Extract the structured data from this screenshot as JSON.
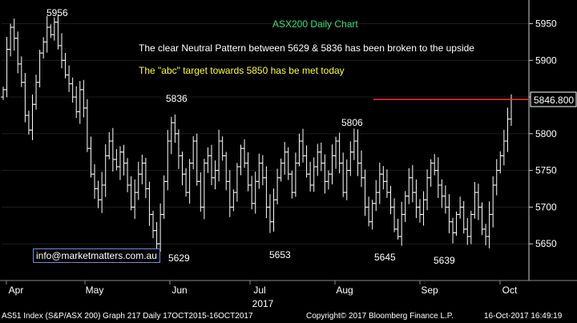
{
  "chart_data": {
    "type": "ohlc",
    "title": "ASX200 Daily Chart",
    "annotations": [
      "The clear Neutral Pattern between 5629 & 5836 has been broken to the upside",
      "The \"abc\" target towards 5850 has be met today"
    ],
    "peak_labels": [
      {
        "label": "5956",
        "value": 5956
      },
      {
        "label": "5836",
        "value": 5836
      },
      {
        "label": "5806",
        "value": 5806
      }
    ],
    "trough_labels": [
      {
        "label": "5629",
        "value": 5629
      },
      {
        "label": "5653",
        "value": 5653
      },
      {
        "label": "5645",
        "value": 5645
      },
      {
        "label": "5639",
        "value": 5639
      }
    ],
    "target_level": 5846.8,
    "last_price_label": "5846.800",
    "y_ticks": [
      5650,
      5700,
      5750,
      5800,
      5850,
      5900,
      5950
    ],
    "ylim": [
      5600,
      5980
    ],
    "x_month_labels": [
      "Apr",
      "May",
      "Jun",
      "Jul",
      "Aug",
      "Sep",
      "Oct"
    ],
    "x_year_label": "2017",
    "watermark": "info@marketmatters.com.au",
    "colors": {
      "background": "#000000",
      "bars": "#ffffff",
      "title": "#33e07a",
      "annotation_yellow": "#ffff33",
      "target_line": "#ff3333"
    },
    "closes": [
      5860,
      5915,
      5945,
      5930,
      5895,
      5870,
      5825,
      5805,
      5840,
      5870,
      5910,
      5925,
      5945,
      5935,
      5952,
      5920,
      5900,
      5880,
      5868,
      5850,
      5830,
      5860,
      5835,
      5780,
      5745,
      5725,
      5710,
      5730,
      5770,
      5790,
      5765,
      5755,
      5775,
      5760,
      5730,
      5700,
      5720,
      5745,
      5760,
      5725,
      5690,
      5668,
      5650,
      5690,
      5735,
      5790,
      5815,
      5800,
      5770,
      5745,
      5720,
      5760,
      5790,
      5735,
      5700,
      5760,
      5770,
      5740,
      5750,
      5790,
      5770,
      5735,
      5700,
      5720,
      5755,
      5780,
      5760,
      5730,
      5705,
      5735,
      5760,
      5740,
      5700,
      5680,
      5710,
      5740,
      5760,
      5775,
      5745,
      5720,
      5760,
      5790,
      5770,
      5745,
      5730,
      5755,
      5775,
      5760,
      5735,
      5745,
      5770,
      5790,
      5760,
      5720,
      5750,
      5775,
      5790,
      5760,
      5740,
      5700,
      5680,
      5705,
      5720,
      5745,
      5735,
      5720,
      5700,
      5670,
      5660,
      5690,
      5715,
      5740,
      5720,
      5700,
      5690,
      5710,
      5740,
      5760,
      5750,
      5730,
      5715,
      5700,
      5680,
      5665,
      5690,
      5700,
      5670,
      5660,
      5690,
      5720,
      5700,
      5670,
      5660,
      5690,
      5730,
      5750,
      5770,
      5790,
      5820,
      5846.8
    ]
  },
  "footer": {
    "left": "AS51 Index (S&P/ASX 200) Graph 217  Daily 17OCT2015-16OCT2017",
    "mid": "Copyright© 2017 Bloomberg Finance L.P.",
    "right": "16-Oct-2017 16:49:19"
  }
}
